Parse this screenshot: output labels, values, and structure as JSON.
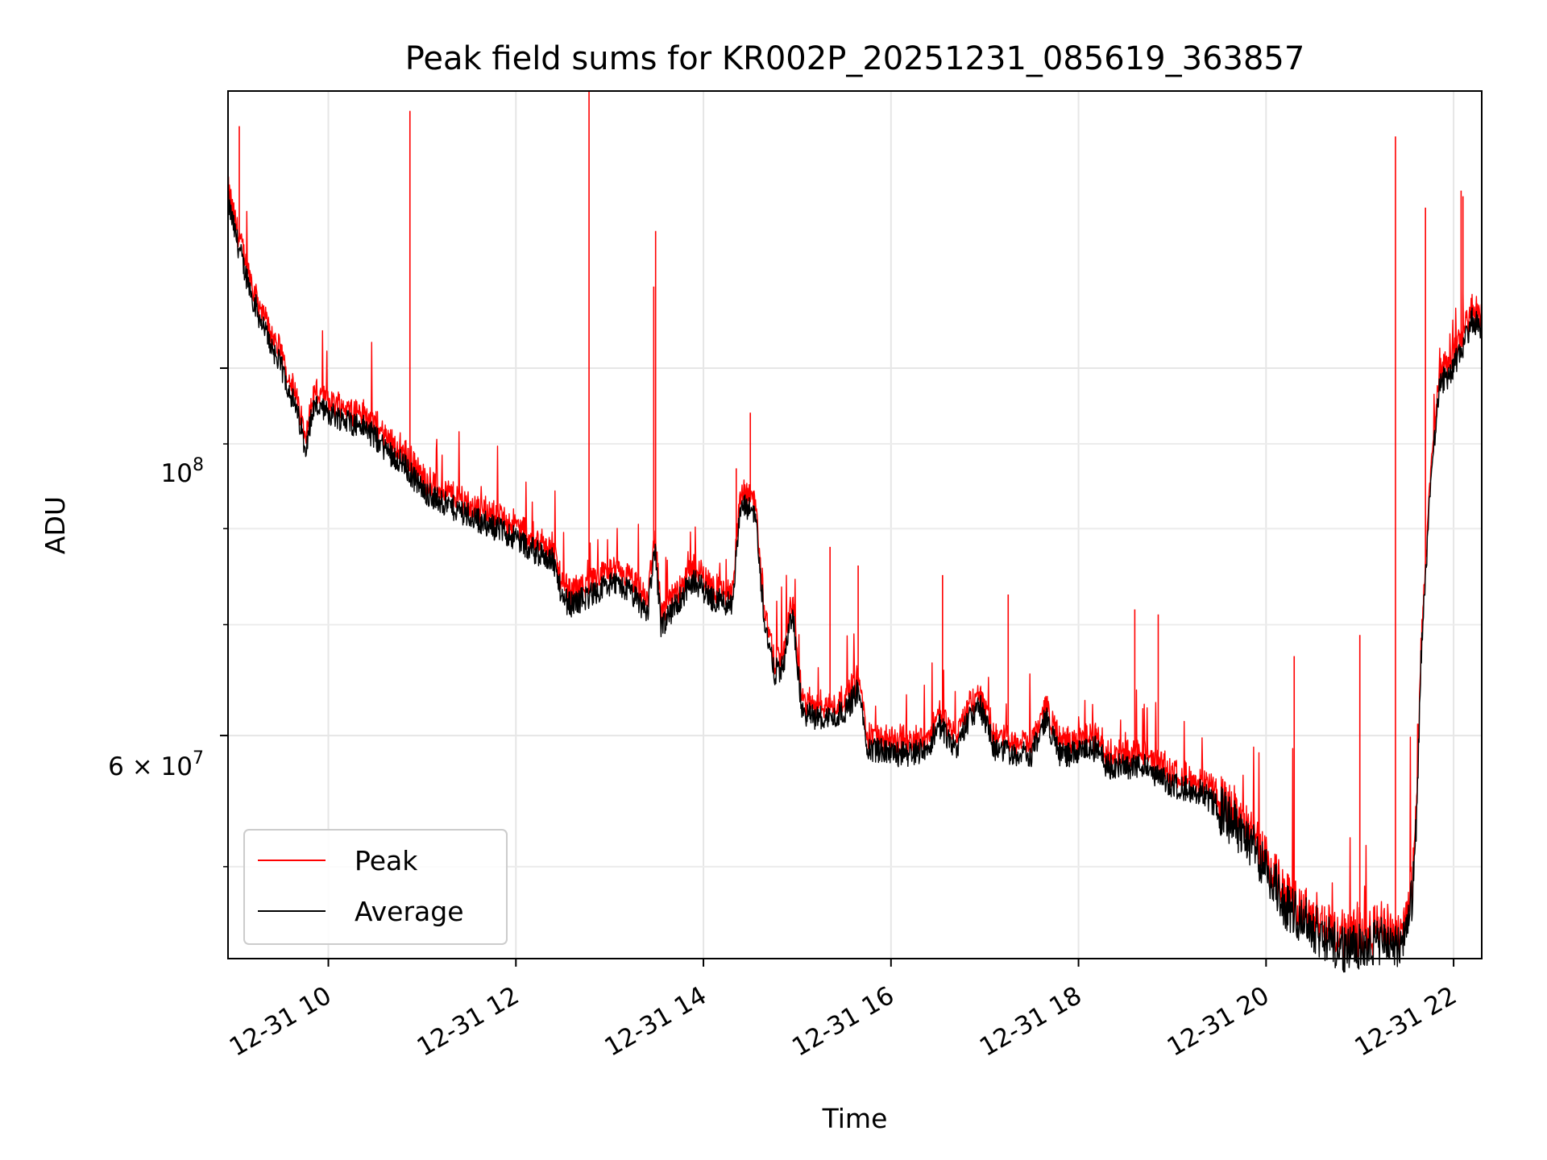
{
  "chart_data": {
    "type": "line",
    "title": "Peak field sums for KR002P_20251231_085619_363857",
    "xlabel": "Time",
    "ylabel": "ADU",
    "yscale": "log",
    "xlim": [
      8.93,
      22.3
    ],
    "ylim": [
      44000000,
      147000000
    ],
    "grid": true,
    "legend_position": "lower-left",
    "xticks": [
      {
        "value": 10,
        "label": "12-31 10"
      },
      {
        "value": 12,
        "label": "12-31 12"
      },
      {
        "value": 14,
        "label": "12-31 14"
      },
      {
        "value": 16,
        "label": "12-31 16"
      },
      {
        "value": 18,
        "label": "12-31 18"
      },
      {
        "value": 20,
        "label": "12-31 20"
      },
      {
        "value": 22,
        "label": "12-31 22"
      }
    ],
    "yticks_major": [
      {
        "value": 100000000,
        "base": "10",
        "exp": "8",
        "label": "10^8"
      },
      {
        "value": 60000000,
        "mant": "6",
        "base": "10",
        "exp": "7",
        "label": "6×10^7"
      }
    ],
    "yticks_minor": [
      50000000,
      70000000,
      80000000,
      90000000
    ],
    "series": [
      {
        "name": "Average",
        "color": "#000000",
        "x": [
          8.93,
          9.0,
          9.1,
          9.2,
          9.3,
          9.4,
          9.5,
          9.6,
          9.7,
          9.75,
          9.85,
          10.0,
          10.2,
          10.4,
          10.6,
          10.8,
          10.9,
          11.0,
          11.2,
          11.5,
          11.8,
          12.0,
          12.2,
          12.4,
          12.5,
          12.6,
          12.8,
          13.0,
          13.2,
          13.4,
          13.48,
          13.55,
          13.7,
          13.9,
          14.1,
          14.3,
          14.4,
          14.55,
          14.6,
          14.65,
          14.75,
          14.85,
          14.95,
          15.05,
          15.2,
          15.4,
          15.55,
          15.65,
          15.75,
          16.0,
          16.2,
          16.4,
          16.5,
          16.7,
          16.8,
          16.95,
          17.1,
          17.3,
          17.5,
          17.65,
          17.8,
          18.0,
          18.2,
          18.3,
          18.5,
          18.7,
          19.0,
          19.3,
          19.6,
          19.9,
          20.2,
          20.5,
          20.7,
          20.9,
          21.1,
          21.3,
          21.45,
          21.55,
          21.6,
          21.65,
          21.7,
          21.75,
          21.85,
          21.95,
          22.1,
          22.2,
          22.3
        ],
        "y": [
          126000000,
          121000000,
          115000000,
          110000000,
          106000000,
          103000000,
          100000000,
          96500000,
          92500000,
          89500000,
          95000000,
          94000000,
          93000000,
          92000000,
          89500000,
          87500000,
          86000000,
          84500000,
          83000000,
          81500000,
          80000000,
          79000000,
          77500000,
          76500000,
          72500000,
          72000000,
          73000000,
          74000000,
          73500000,
          71000000,
          78000000,
          69500000,
          72000000,
          74500000,
          72500000,
          72000000,
          82500000,
          82000000,
          76000000,
          70500000,
          65500000,
          66000000,
          71500000,
          62000000,
          61500000,
          61500000,
          62500000,
          64000000,
          59000000,
          58500000,
          58500000,
          59000000,
          61000000,
          59000000,
          61000000,
          62500000,
          59000000,
          58500000,
          58500000,
          61500000,
          58500000,
          58500000,
          59000000,
          57500000,
          57500000,
          57500000,
          56000000,
          55500000,
          53500000,
          51000000,
          47500000,
          46000000,
          45000000,
          44500000,
          45000000,
          45000000,
          45000000,
          47500000,
          52000000,
          66000000,
          75000000,
          84000000,
          98000000,
          99000000,
          103000000,
          107000000,
          106000000
        ]
      },
      {
        "name": "Peak",
        "color": "#ff0000",
        "base_offset": 1.012,
        "spikes": [
          {
            "x": 9.05,
            "y": 140000000
          },
          {
            "x": 10.87,
            "y": 143000000
          },
          {
            "x": 12.78,
            "y": 147000000
          },
          {
            "x": 13.47,
            "y": 112000000
          },
          {
            "x": 13.49,
            "y": 121000000
          },
          {
            "x": 14.5,
            "y": 94000000
          },
          {
            "x": 14.35,
            "y": 87000000
          },
          {
            "x": 15.35,
            "y": 78000000
          },
          {
            "x": 15.65,
            "y": 76000000
          },
          {
            "x": 16.55,
            "y": 75000000
          },
          {
            "x": 17.25,
            "y": 73000000
          },
          {
            "x": 18.6,
            "y": 71500000
          },
          {
            "x": 18.85,
            "y": 71000000
          },
          {
            "x": 20.3,
            "y": 67000000
          },
          {
            "x": 21.0,
            "y": 69000000
          },
          {
            "x": 21.38,
            "y": 138000000
          },
          {
            "x": 21.7,
            "y": 125000000
          },
          {
            "x": 22.08,
            "y": 128000000
          },
          {
            "x": 22.1,
            "y": 127000000
          }
        ]
      }
    ]
  }
}
